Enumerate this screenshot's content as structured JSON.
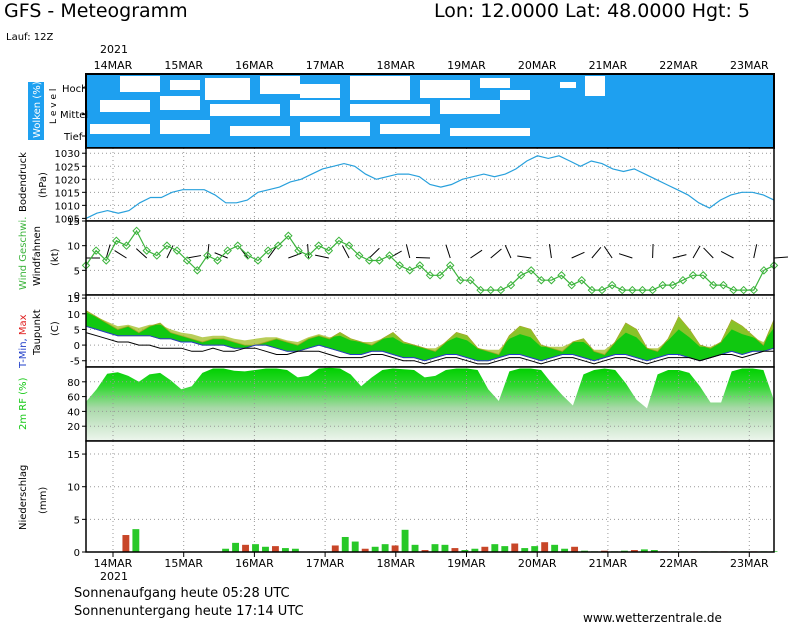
{
  "header": {
    "title": "GFS - Meteogramm",
    "location": "Lon: 12.0000  Lat: 48.0000  Hgt: 5",
    "run": "Lauf: 12Z",
    "year_top": "2021",
    "year_bottom": "2021"
  },
  "footer": {
    "sunrise": "Sonnenaufgang heute 05:28 UTC",
    "sunset": "Sonnenuntergang heute 17:14 UTC",
    "website": "www.wetterzentrale.de"
  },
  "colors": {
    "cloud": "#1ea0f0",
    "pressure": "#28a0dc",
    "wind": "#3cb43c",
    "tmin": "#1e3cc8",
    "tmax": "#e02020",
    "humidity": "#14c814",
    "precip_rain": "#28c828",
    "precip_conv": "#c84628"
  },
  "chart_data": {
    "type": "meteogram",
    "x_ticks": [
      "14MAR",
      "15MAR",
      "16MAR",
      "17MAR",
      "18MAR",
      "19MAR",
      "20MAR",
      "21MAR",
      "22MAR",
      "23MAR"
    ],
    "panels": {
      "clouds": {
        "ylabel": "Wolken (%)",
        "ylabel2": "L e v e l",
        "levels": [
          "Hoch",
          "Mittel",
          "Tief"
        ]
      },
      "pressure": {
        "ylabel": "Bodendruck",
        "unit": "(hPa)",
        "ylim": [
          1004,
          1032
        ],
        "yticks": [
          1005,
          1010,
          1015,
          1020,
          1025,
          1030
        ],
        "values": [
          1005,
          1007,
          1008,
          1007,
          1008,
          1011,
          1013,
          1013,
          1015,
          1016,
          1016,
          1016,
          1014,
          1011,
          1011,
          1012,
          1015,
          1016,
          1017,
          1019,
          1020,
          1022,
          1024,
          1025,
          1026,
          1025,
          1022,
          1020,
          1021,
          1022,
          1022,
          1021,
          1018,
          1017,
          1018,
          1020,
          1021,
          1022,
          1021,
          1022,
          1024,
          1027,
          1029,
          1028,
          1029,
          1027,
          1025,
          1027,
          1026,
          1024,
          1023,
          1024,
          1022,
          1020,
          1018,
          1016,
          1014,
          1011,
          1009,
          1012,
          1014,
          1015,
          1015,
          1014,
          1012
        ]
      },
      "wind": {
        "ylabel": "Wind Geschwi.",
        "ylabel2": "Windfahnen",
        "unit": "(kt)",
        "ylim": [
          0,
          15
        ],
        "yticks": [
          0,
          5,
          10,
          15
        ],
        "values": [
          6,
          9,
          7,
          11,
          10,
          13,
          9,
          8,
          10,
          9,
          7,
          5,
          8,
          7,
          9,
          10,
          8,
          7,
          9,
          10,
          12,
          9,
          8,
          10,
          9,
          11,
          10,
          8,
          7,
          7,
          8,
          6,
          5,
          6,
          4,
          4,
          6,
          3,
          3,
          1,
          1,
          1,
          2,
          4,
          5,
          3,
          3,
          4,
          2,
          3,
          1,
          1,
          2,
          1,
          1,
          1,
          1,
          2,
          2,
          3,
          4,
          4,
          2,
          2,
          1,
          1,
          1,
          5,
          6
        ]
      },
      "temperature": {
        "ylabel": "T-Min, Max",
        "ylabel2": "Taupunkt",
        "unit": "(C)",
        "ylim": [
          -7,
          16
        ],
        "yticks": [
          -5,
          0,
          5,
          10,
          15
        ],
        "tmax": [
          11,
          9,
          7,
          5,
          6,
          4,
          6,
          7,
          4,
          3,
          2,
          1,
          2,
          2,
          1,
          0,
          0,
          1,
          2,
          1,
          0,
          2,
          3,
          2,
          4,
          2,
          1,
          0,
          2,
          4,
          1,
          0,
          -1,
          -2,
          1,
          4,
          3,
          -1,
          -2,
          -3,
          3,
          6,
          5,
          0,
          -1,
          -2,
          1,
          2,
          -2,
          -3,
          1,
          7,
          5,
          -1,
          -2,
          2,
          9,
          5,
          0,
          -1,
          1,
          8,
          6,
          3,
          0,
          8
        ],
        "tmin": [
          6,
          5,
          4,
          3,
          3,
          3,
          3,
          2,
          2,
          1,
          1,
          0,
          0,
          0,
          -1,
          -1,
          0,
          0,
          -1,
          -2,
          -2,
          -1,
          0,
          -1,
          -2,
          -3,
          -3,
          -2,
          -2,
          -3,
          -4,
          -4,
          -5,
          -4,
          -3,
          -3,
          -4,
          -5,
          -5,
          -4,
          -3,
          -3,
          -4,
          -5,
          -4,
          -3,
          -3,
          -4,
          -5,
          -4,
          -3,
          -3,
          -4,
          -5,
          -4,
          -3,
          -3,
          -4,
          -5,
          -4,
          -3,
          -2,
          -3,
          -2,
          -2,
          -1
        ],
        "dewpoint": [
          4,
          3,
          2,
          1,
          1,
          0,
          0,
          -1,
          -1,
          -1,
          -2,
          -2,
          -1,
          -2,
          -2,
          -1,
          -1,
          -2,
          -3,
          -3,
          -2,
          -2,
          -2,
          -3,
          -4,
          -4,
          -4,
          -3,
          -3,
          -4,
          -5,
          -5,
          -6,
          -5,
          -4,
          -4,
          -5,
          -6,
          -6,
          -5,
          -4,
          -4,
          -5,
          -6,
          -5,
          -4,
          -4,
          -5,
          -6,
          -5,
          -4,
          -4,
          -5,
          -6,
          -5,
          -4,
          -4,
          -4,
          -5,
          -4,
          -3,
          -3,
          -4,
          -3,
          -2,
          -2
        ]
      },
      "humidity": {
        "ylabel": "2m RF (%)",
        "ylim": [
          0,
          100
        ],
        "yticks": [
          20,
          40,
          60,
          80
        ],
        "values": [
          53,
          70,
          91,
          93,
          88,
          80,
          90,
          92,
          82,
          70,
          74,
          92,
          98,
          98,
          95,
          94,
          96,
          98,
          98,
          96,
          86,
          88,
          98,
          99,
          98,
          90,
          74,
          86,
          96,
          98,
          97,
          96,
          86,
          88,
          96,
          98,
          98,
          96,
          70,
          54,
          94,
          98,
          98,
          96,
          78,
          62,
          48,
          90,
          96,
          98,
          96,
          78,
          56,
          44,
          90,
          96,
          96,
          92,
          74,
          52,
          52,
          94,
          98,
          98,
          96,
          55
        ]
      },
      "precipitation": {
        "ylabel": "Niederschlag",
        "unit": "(mm)",
        "ylim": [
          0,
          17
        ],
        "yticks": [
          0,
          5,
          10,
          15
        ],
        "values": [
          0,
          0,
          0,
          0,
          2.6,
          3.5,
          0,
          0,
          0,
          0,
          0,
          0,
          0,
          0,
          0.5,
          1.4,
          1.1,
          1.2,
          0.8,
          0.9,
          0.6,
          0.5,
          0,
          0,
          0,
          1.0,
          2.3,
          1.6,
          0.5,
          0.8,
          1.2,
          1.0,
          3.4,
          1.1,
          0.3,
          1.2,
          1.1,
          0.6,
          0.3,
          0.5,
          0.8,
          1.2,
          0.9,
          1.3,
          0.6,
          0.9,
          1.5,
          1.1,
          0.5,
          0.8,
          0.2,
          0.1,
          0.2,
          0.1,
          0.2,
          0.3,
          0.4,
          0.3,
          0.1,
          0.1,
          0.1,
          0.1,
          0.1,
          0.1,
          0.1,
          0.1,
          0.1,
          0.1,
          0.1,
          0.1
        ]
      }
    }
  }
}
